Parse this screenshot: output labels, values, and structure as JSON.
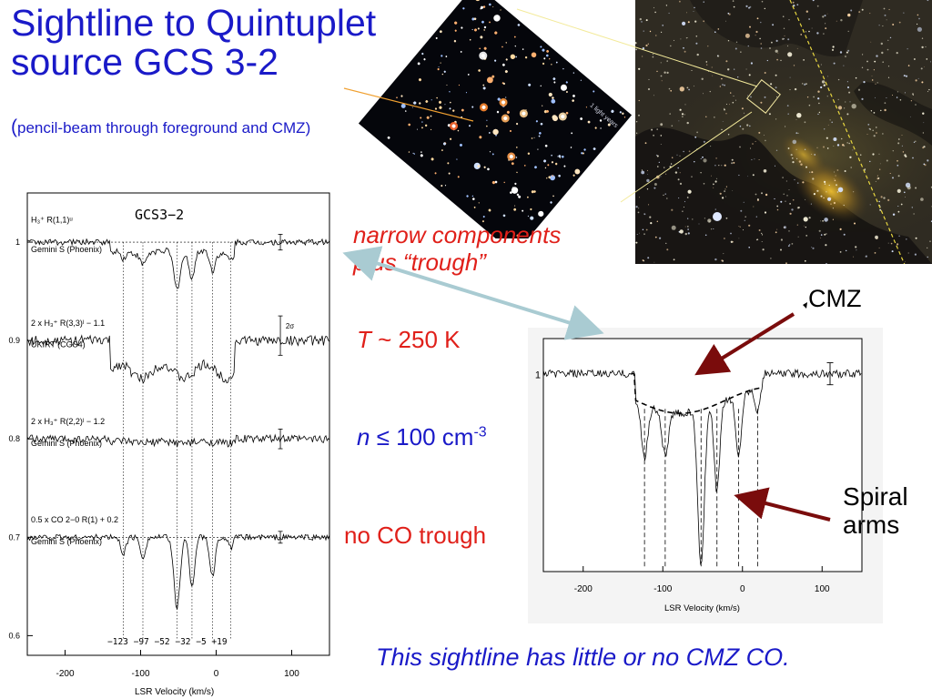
{
  "slide": {
    "title": "Sightline to Quintuplet source GCS 3-2",
    "subtitle_paren": "(",
    "subtitle_rest": "pencil-beam through foreground and CMZ)",
    "annot_narrow": [
      "narrow components",
      "plus “trough”"
    ],
    "annot_T_sym": "T",
    "annot_T_rest": " ~ 250 K",
    "annot_n_sym": "n",
    "annot_n_rest": " ≤ 100 cm",
    "annot_n_exp": "-3",
    "annot_noco": "no CO trough",
    "label_cmz": "CMZ",
    "label_spiral": [
      "Spiral",
      "arms"
    ],
    "conclusion": "This sightline has little or no CMZ CO.",
    "cluster_scale": "1 light years",
    "colors": {
      "title": "#1a1ac8",
      "annotation": "#e0201a",
      "arrow": "#7a0c0c"
    }
  },
  "chart_data": [
    {
      "type": "line",
      "panel": "left",
      "title": "GCS3−2",
      "xlabel": "LSR Velocity (km/s)",
      "xlim": [
        -250,
        150
      ],
      "ylim": [
        0.58,
        1.05
      ],
      "x_ticks": [
        -200,
        -100,
        0,
        100
      ],
      "y_ticks": [
        0.6,
        0.7,
        0.8,
        0.9,
        1.0
      ],
      "y_tick_labels": [
        "0.6",
        "0.7",
        "0.8",
        "0.9",
        "1"
      ],
      "velocity_markers": [
        -123,
        -97,
        -52,
        -32,
        -5,
        19
      ],
      "velocity_marker_labels": "−123 −97   −52 −32  −5 +19",
      "series": [
        {
          "name": "H3+ R(1,1)u",
          "instrument": "Gemini S (Phoenix)",
          "label": "H₃⁺ R(1,1)ᵘ",
          "baseline": 1.0
        },
        {
          "name": "2 x H3+ R(3,3)l − 1.1",
          "instrument": "UKIRT (CGS4)",
          "label": "2 x H₃⁺ R(3,3)ˡ − 1.1",
          "baseline": 0.9
        },
        {
          "name": "2 x H3+ R(2,2)l − 1.2",
          "instrument": "Gemini S (Phoenix)",
          "label": "2 x H₃⁺ R(2,2)ˡ − 1.2",
          "baseline": 0.8
        },
        {
          "name": "0.5 x CO 2−0 R(1) + 0.2",
          "instrument": "Gemini S (Phoenix)",
          "label": "0.5 x CO 2−0 R(1) + 0.2",
          "baseline": 0.7
        }
      ],
      "error_bar_label": "2σ"
    },
    {
      "type": "line",
      "panel": "right",
      "xlabel": "LSR Velocity (km/s)",
      "xlim": [
        -250,
        150
      ],
      "x_ticks": [
        -200,
        -100,
        0,
        100
      ],
      "y_tick_labels": [
        "1"
      ],
      "velocity_markers": [
        -123,
        -97,
        -52,
        -32,
        -5,
        19
      ],
      "series": [
        {
          "name": "spectrum",
          "style": "solid"
        },
        {
          "name": "trough fit",
          "style": "dashed"
        }
      ]
    }
  ]
}
